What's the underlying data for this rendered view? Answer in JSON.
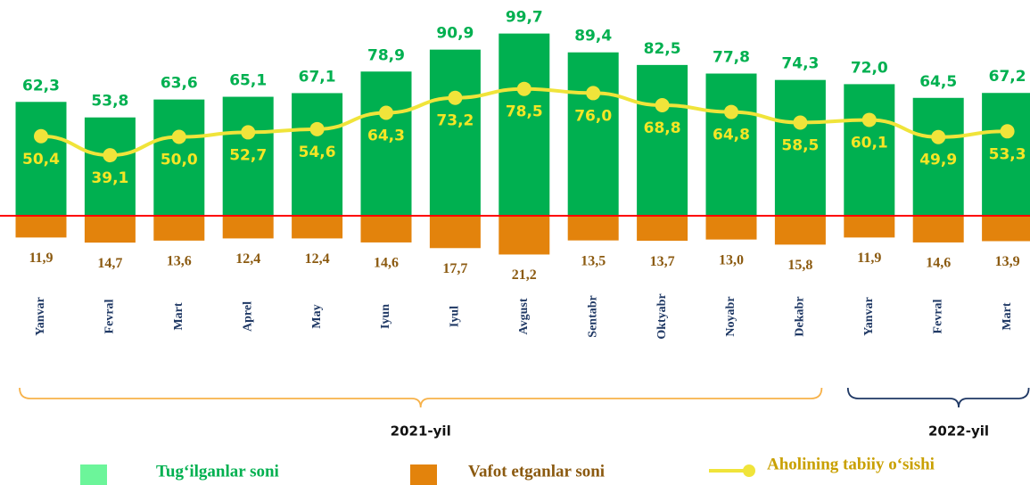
{
  "chart_data": {
    "type": "bar_line",
    "categories": [
      "Yanvar",
      "Fevral",
      "Mart",
      "Aprel",
      "May",
      "Iyun",
      "Iyul",
      "Avgust",
      "Sentabr",
      "Oktyabr",
      "Noyabr",
      "Dekabr",
      "Yanvar",
      "Fevral",
      "Mart"
    ],
    "groups": [
      {
        "label": "2021-yil",
        "count": 12,
        "color": "#f7b24a"
      },
      {
        "label": "2022-yil",
        "count": 3,
        "color": "#1f3864"
      }
    ],
    "ylim": [
      -25,
      115
    ],
    "y2lim": [
      -24,
      128
    ],
    "baseline_color": "#ff0000",
    "series": [
      {
        "name": "Tug‘ilganlar soni",
        "type": "bar",
        "color": "#00b050",
        "values": [
          62.3,
          53.8,
          63.6,
          65.1,
          67.1,
          78.9,
          90.9,
          99.7,
          89.4,
          82.5,
          77.8,
          74.3,
          72.0,
          64.5,
          67.2
        ],
        "value_labels": [
          "62,3",
          "53,8",
          "63,6",
          "65,1",
          "67,1",
          "78,9",
          "90,9",
          "99,7",
          "89,4",
          "82,5",
          "77,8",
          "74,3",
          "72,0",
          "64,5",
          "67,2"
        ]
      },
      {
        "name": "Vafot etganlar soni",
        "type": "bar",
        "direction": "down",
        "color": "#e3830c",
        "values": [
          11.9,
          14.7,
          13.6,
          12.4,
          12.4,
          14.6,
          17.7,
          21.2,
          13.5,
          13.7,
          13.0,
          15.8,
          11.9,
          14.6,
          13.9
        ],
        "value_labels": [
          "11,9",
          "14,7",
          "13,6",
          "12,4",
          "12,4",
          "14,6",
          "17,7",
          "21,2",
          "13,5",
          "13,7",
          "13,0",
          "15,8",
          "11,9",
          "14,6",
          "13,9"
        ]
      },
      {
        "name": "Aholining tabiiy o‘sishi",
        "type": "line",
        "axis": "y2",
        "color": "#f0e43a",
        "values": [
          50.4,
          39.1,
          50.0,
          52.7,
          54.6,
          64.3,
          73.2,
          78.5,
          76.0,
          68.8,
          64.8,
          58.5,
          60.1,
          49.9,
          53.3
        ],
        "value_labels": [
          "50,4",
          "39,1",
          "50,0",
          "52,7",
          "54,6",
          "64,3",
          "73,2",
          "78,5",
          "76,0",
          "68,8",
          "64,8",
          "58,5",
          "60,1",
          "49,9",
          "53,3"
        ]
      }
    ]
  }
}
